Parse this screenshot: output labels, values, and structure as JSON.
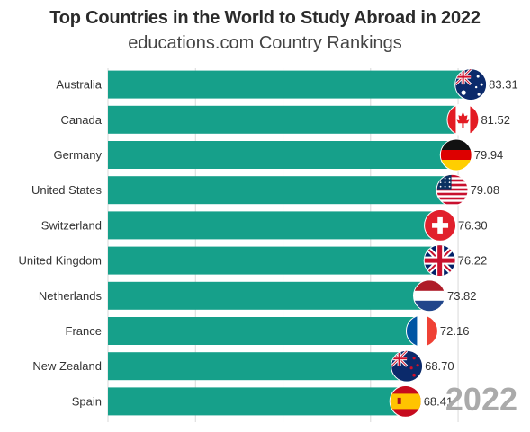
{
  "title": "Top Countries in the World to Study Abroad in 2022",
  "subtitle": "educations.com Country Rankings",
  "year_label": "2022",
  "colors": {
    "bar": "#16a08a",
    "grid": "#d9d9d9"
  },
  "chart_data": {
    "type": "bar",
    "orientation": "horizontal",
    "title": "Top Countries in the World to Study Abroad in 2022",
    "subtitle": "educations.com Country Rankings",
    "categories": [
      "Australia",
      "Canada",
      "Germany",
      "United States",
      "Switzerland",
      "United Kingdom",
      "Netherlands",
      "France",
      "New Zealand",
      "Spain"
    ],
    "values": [
      83.31,
      81.52,
      79.94,
      79.08,
      76.3,
      76.22,
      73.82,
      72.16,
      68.7,
      68.41
    ],
    "value_labels": [
      "83.31",
      "81.52",
      "79.94",
      "79.08",
      "76.30",
      "76.22",
      "73.82",
      "72.16",
      "68.70",
      "68.41"
    ],
    "flags": [
      "flag-australia",
      "flag-canada",
      "flag-germany",
      "flag-united-states",
      "flag-switzerland",
      "flag-united-kingdom",
      "flag-netherlands",
      "flag-france",
      "flag-new-zealand",
      "flag-spain"
    ],
    "xlim": [
      0,
      95
    ],
    "grid": true,
    "legend": "none"
  }
}
